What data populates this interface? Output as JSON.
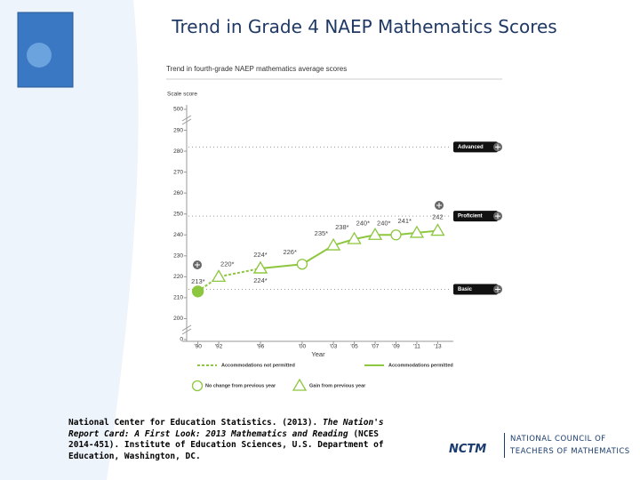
{
  "title": "Trend in Grade 4 NAEP Mathematics Scores",
  "citation": [
    "National Center for Education Statistics. (2013).",
    "The Nation's Report Card: A First Look: 2013 Mathematics and Reading",
    "(NCES 2014-451). Institute of Education Sciences, U.S. Department of Education, Washington, DC."
  ],
  "logo": {
    "mark": "NCTM",
    "name": "NATIONAL COUNCIL OF TEACHERS OF MATHEMATICS"
  },
  "chart_data": {
    "type": "line",
    "title": "Trend in fourth-grade NAEP mathematics average scores",
    "ylabel": "Scale score",
    "xlabel": "Year",
    "ylim": [
      0,
      500
    ],
    "yticks": [
      0,
      200,
      210,
      220,
      230,
      240,
      250,
      260,
      270,
      280,
      290,
      500
    ],
    "xlim": [
      1988.5,
      2014.5
    ],
    "xticks": [
      {
        "value": 1990,
        "label": "'90"
      },
      {
        "value": 1992,
        "label": "'92"
      },
      {
        "value": 1996,
        "label": "'96"
      },
      {
        "value": 2000,
        "label": "'00"
      },
      {
        "value": 2003,
        "label": "'03"
      },
      {
        "value": 2005,
        "label": "'05"
      },
      {
        "value": 2007,
        "label": "'07"
      },
      {
        "value": 2009,
        "label": "'09"
      },
      {
        "value": 2011,
        "label": "'11"
      },
      {
        "value": 2013,
        "label": "'13"
      }
    ],
    "levels": [
      {
        "name": "Advanced",
        "value": 282
      },
      {
        "name": "Proficient",
        "value": 249
      },
      {
        "name": "Basic",
        "value": 214
      }
    ],
    "series": [
      {
        "name": "Accommodations not permitted",
        "color": "#8dc63f",
        "dashed": true,
        "x": [
          1990,
          1992,
          1996
        ],
        "values": [
          213,
          220,
          224
        ],
        "value_labels": [
          "213*",
          "220*",
          "224*"
        ],
        "markers": [
          "filled",
          "triangle",
          "triangle"
        ]
      },
      {
        "name": "Accommodations permitted",
        "color": "#8dc63f",
        "dashed": false,
        "x": [
          1996,
          2000,
          2003,
          2005,
          2007,
          2009,
          2011,
          2013
        ],
        "values": [
          224,
          226,
          235,
          238,
          240,
          240,
          241,
          242
        ],
        "value_labels": [
          "224*",
          "226*",
          "235*",
          "238*",
          "240*",
          "240*",
          "241*",
          "242"
        ],
        "markers": [
          "triangle",
          "circle",
          "triangle",
          "triangle",
          "triangle",
          "circle",
          "triangle",
          "triangle"
        ]
      }
    ],
    "marker_legend": [
      "No change from previous year",
      "Gain from previous year"
    ]
  }
}
